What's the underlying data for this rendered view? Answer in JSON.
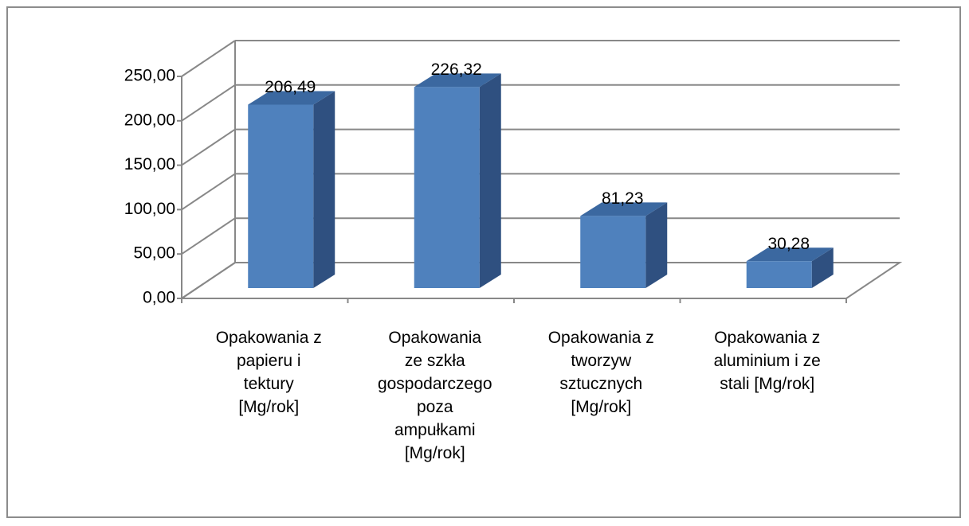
{
  "chart_data": {
    "type": "bar3d",
    "categories": [
      "Opakowania z\npapieru i\ntektury\n[Mg/rok]",
      "Opakowania\nze szkła\ngospodarczego\npoza\nampułkami\n[Mg/rok]",
      "Opakowania z\ntworzyw\nsztucznych\n[Mg/rok]",
      "Opakowania z\naluminium i ze\nstali [Mg/rok]"
    ],
    "values": [
      206.49,
      226.32,
      81.23,
      30.28
    ],
    "value_labels": [
      "206,49",
      "226,32",
      "81,23",
      "30,28"
    ],
    "color": "#4f81bd",
    "ylim": [
      0,
      250
    ],
    "yticks": [
      {
        "value": 0,
        "label": "0,00"
      },
      {
        "value": 50,
        "label": "50,00"
      },
      {
        "value": 100,
        "label": "100,00"
      },
      {
        "value": 150,
        "label": "150,00"
      },
      {
        "value": 200,
        "label": "200,00"
      },
      {
        "value": 250,
        "label": "250,00"
      }
    ],
    "grid": true
  }
}
